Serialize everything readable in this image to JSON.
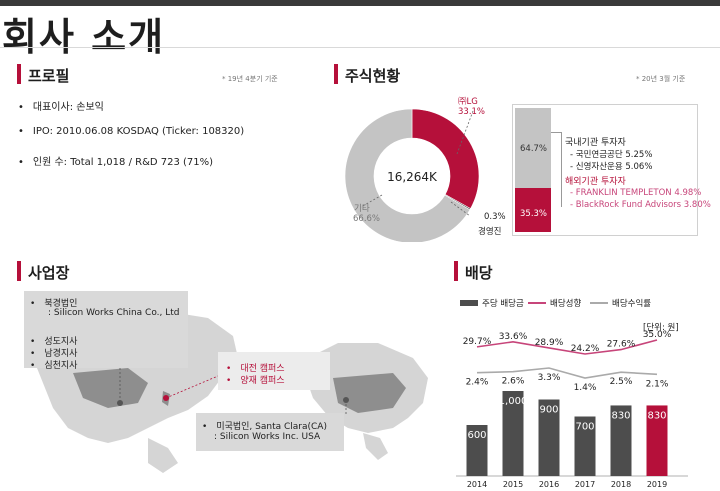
{
  "page": {
    "title": "회사 소개"
  },
  "profile": {
    "section_title": "프로필",
    "note": "* 19년 4분기 기준",
    "items": [
      "대표이사: 손보익",
      "IPO: 2010.06.08 KOSDAQ (Ticker: 108320)",
      "인원 수: Total 1,018 /  R&D 723 (71%)"
    ]
  },
  "shareholders": {
    "section_title": "주식현황",
    "note": "* 20년 3월 기준",
    "total": "16,264K",
    "slices": [
      {
        "name": "㈜LG",
        "pct_label": "33.1%",
        "value": 33.1,
        "color": "#b5103a"
      },
      {
        "name": "경영진",
        "pct_label": "0.3%",
        "value": 0.3,
        "color": "#333333"
      },
      {
        "name": "기타",
        "pct_label": "66.6%",
        "value": 66.6,
        "color": "#c4c4c4"
      }
    ],
    "bar_segments": [
      {
        "label": "64.7%",
        "value": 64.7,
        "color": "#c4c4c4"
      },
      {
        "label": "35.3%",
        "value": 35.3,
        "color": "#b5103a"
      }
    ],
    "domestic": {
      "title": "국내기관 투자자",
      "items": [
        "국민연금공단  5.25%",
        "신영자산운용 5.06%"
      ]
    },
    "foreign": {
      "title": "해외기관 투자자",
      "items": [
        "FRANKLIN TEMPLETON  4.98%",
        "BlackRock Fund Advisors 3.80%"
      ]
    }
  },
  "business": {
    "section_title": "사업장",
    "box1": [
      "북경법인",
      ": Silicon Works China Co., Ltd",
      "성도지사",
      "남경지사",
      "심천지사"
    ],
    "box2": [
      "대전 캠퍼스",
      "양재 캠퍼스"
    ],
    "box3": [
      "미국법인, Santa Clara(CA)",
      ": Silicon Works Inc. USA"
    ]
  },
  "dividend": {
    "section_title": "배당",
    "legend": [
      "주당 배당금",
      "배당성향",
      "배당수익률"
    ],
    "unit": "[단위: 원]"
  },
  "colors": {
    "accent": "#b5103a",
    "bar_gray": "#4d4d4d",
    "light_gray": "#c4c4c4",
    "pink": "#c7457a"
  },
  "chart_data": {
    "type": "bar",
    "categories": [
      "2014",
      "2015",
      "2016",
      "2017",
      "2018",
      "2019"
    ],
    "series": [
      {
        "name": "주당 배당금",
        "type": "bar",
        "values": [
          600,
          1000,
          900,
          700,
          830,
          830
        ],
        "labels": [
          "600",
          "1,000",
          "900",
          "700",
          "830",
          "830"
        ]
      },
      {
        "name": "배당성향",
        "type": "line",
        "values": [
          29.7,
          33.6,
          28.9,
          24.2,
          27.6,
          35.0
        ],
        "labels": [
          "29.7%",
          "33.6%",
          "28.9%",
          "24.2%",
          "27.6%",
          "35.0%"
        ]
      },
      {
        "name": "배당수익률",
        "type": "line",
        "values": [
          2.4,
          2.6,
          3.3,
          1.4,
          2.5,
          2.1
        ],
        "labels": [
          "2.4%",
          "2.6%",
          "3.3%",
          "1.4%",
          "2.5%",
          "2.1%"
        ]
      }
    ]
  }
}
